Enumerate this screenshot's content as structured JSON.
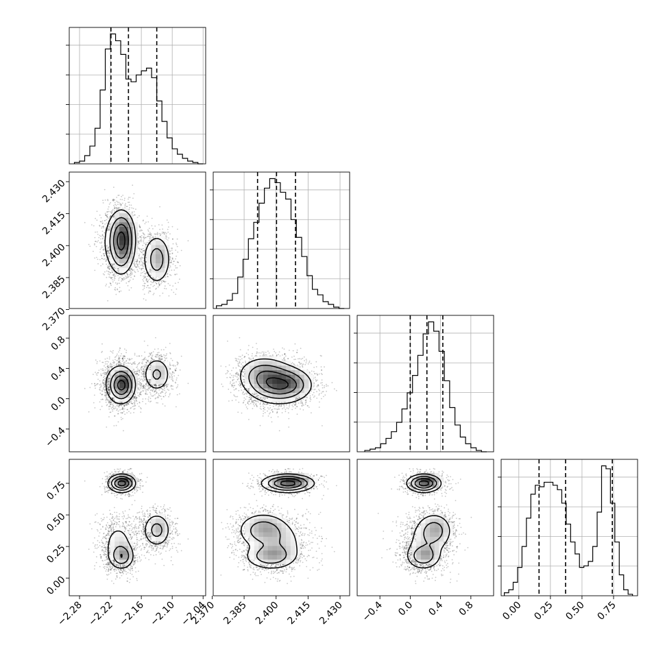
{
  "chart_data": {
    "type": "corner",
    "panel_layout": [
      [
        "hist",
        null,
        null,
        null
      ],
      [
        "scatter-contour",
        "hist",
        null,
        null
      ],
      [
        "scatter-contour",
        "scatter-contour",
        "hist",
        null
      ],
      [
        "scatter-contour",
        "scatter-contour",
        "scatter-contour",
        "hist"
      ]
    ],
    "parameters": [
      {
        "index": 0,
        "range": [
          -2.3,
          -2.035
        ],
        "ticks": [
          -2.28,
          -2.22,
          -2.16,
          -2.1,
          -2.04
        ],
        "tick_labels": [
          "−2.28",
          "−2.22",
          "−2.16",
          "−2.10",
          "−2.04"
        ],
        "quantile_lines": [
          -2.219,
          -2.185,
          -2.13
        ],
        "histogram": {
          "bin_edges": [
            -2.29,
            -2.28,
            -2.27,
            -2.26,
            -2.25,
            -2.24,
            -2.23,
            -2.22,
            -2.21,
            -2.2,
            -2.19,
            -2.18,
            -2.17,
            -2.16,
            -2.15,
            -2.14,
            -2.13,
            -2.12,
            -2.11,
            -2.1,
            -2.09,
            -2.08,
            -2.07,
            -2.06,
            -2.05,
            -2.04
          ],
          "counts": [
            1,
            2,
            6,
            13,
            26,
            54,
            84,
            95,
            90,
            80,
            62,
            60,
            65,
            68,
            70,
            63,
            46,
            31,
            19,
            11,
            7,
            4,
            2,
            1,
            0
          ]
        }
      },
      {
        "index": 1,
        "range": [
          2.3705,
          2.4345
        ],
        "ticks": [
          2.37,
          2.385,
          2.4,
          2.415,
          2.43
        ],
        "tick_labels": [
          "2.370",
          "2.385",
          "2.400",
          "2.415",
          "2.430"
        ],
        "quantile_lines": [
          2.3913,
          2.4002,
          2.4091
        ],
        "histogram": {
          "bin_edges": [
            2.372,
            2.3745,
            2.377,
            2.3795,
            2.382,
            2.3845,
            2.387,
            2.3895,
            2.392,
            2.3945,
            2.397,
            2.3995,
            2.402,
            2.4045,
            2.407,
            2.4095,
            2.412,
            2.4145,
            2.417,
            2.4195,
            2.422,
            2.4245,
            2.427,
            2.4295,
            2.432
          ],
          "counts": [
            2,
            3,
            6,
            11,
            23,
            36,
            51,
            63,
            77,
            88,
            95,
            92,
            85,
            80,
            65,
            52,
            38,
            24,
            14,
            10,
            5,
            3,
            1,
            0
          ]
        }
      },
      {
        "index": 2,
        "range": [
          -0.7,
          1.1
        ],
        "ticks": [
          -0.4,
          0.0,
          0.4,
          0.8
        ],
        "tick_labels": [
          "−0.4",
          "0.0",
          "0.4",
          "0.8"
        ],
        "quantile_lines": [
          0.0,
          0.22,
          0.43
        ],
        "histogram": {
          "bin_edges": [
            -0.6,
            -0.53,
            -0.46,
            -0.39,
            -0.32,
            -0.25,
            -0.18,
            -0.11,
            -0.04,
            0.03,
            0.1,
            0.17,
            0.24,
            0.31,
            0.38,
            0.45,
            0.52,
            0.59,
            0.66,
            0.73,
            0.8,
            0.87,
            0.94,
            1.01
          ],
          "counts": [
            1,
            2,
            3,
            6,
            10,
            15,
            22,
            32,
            44,
            57,
            72,
            88,
            97,
            90,
            75,
            53,
            33,
            20,
            11,
            6,
            3,
            1,
            0
          ]
        }
      },
      {
        "index": 3,
        "range": [
          -0.14,
          0.94
        ],
        "ticks": [
          0.0,
          0.25,
          0.5,
          0.75
        ],
        "tick_labels": [
          "0.00",
          "0.25",
          "0.50",
          "0.75"
        ],
        "quantile_lines": [
          0.16,
          0.37,
          0.74
        ],
        "histogram": {
          "bin_edges": [
            -0.115,
            -0.08,
            -0.045,
            -0.01,
            0.025,
            0.06,
            0.095,
            0.13,
            0.165,
            0.2,
            0.235,
            0.27,
            0.305,
            0.34,
            0.375,
            0.41,
            0.445,
            0.48,
            0.515,
            0.55,
            0.585,
            0.62,
            0.655,
            0.69,
            0.725,
            0.76,
            0.795,
            0.83,
            0.865,
            0.9
          ],
          "counts": [
            2,
            4,
            9,
            19,
            33,
            52,
            68,
            74,
            73,
            76,
            76,
            74,
            71,
            62,
            48,
            36,
            28,
            19,
            20,
            23,
            33,
            56,
            87,
            85,
            62,
            36,
            14,
            4,
            1
          ]
        }
      }
    ],
    "joint_distributions": {
      "description_free": true,
      "components": [
        {
          "mean": [
            -2.198,
            2.4055,
            0.18,
            0.75
          ],
          "sd": [
            0.013,
            0.006,
            0.11,
            0.035
          ],
          "weight": 0.31
        },
        {
          "mean": [
            -2.198,
            2.397,
            0.17,
            0.17
          ],
          "sd": [
            0.012,
            0.006,
            0.11,
            0.05
          ],
          "weight": 0.19
        },
        {
          "mean": [
            -2.13,
            2.3935,
            0.32,
            0.38
          ],
          "sd": [
            0.014,
            0.006,
            0.12,
            0.07
          ],
          "weight": 0.27
        },
        {
          "mean": [
            -2.205,
            2.401,
            0.2,
            0.27
          ],
          "sd": [
            0.017,
            0.007,
            0.16,
            0.1
          ],
          "weight": 0.23
        }
      ]
    },
    "title": "",
    "grid": true,
    "legend": "none"
  }
}
